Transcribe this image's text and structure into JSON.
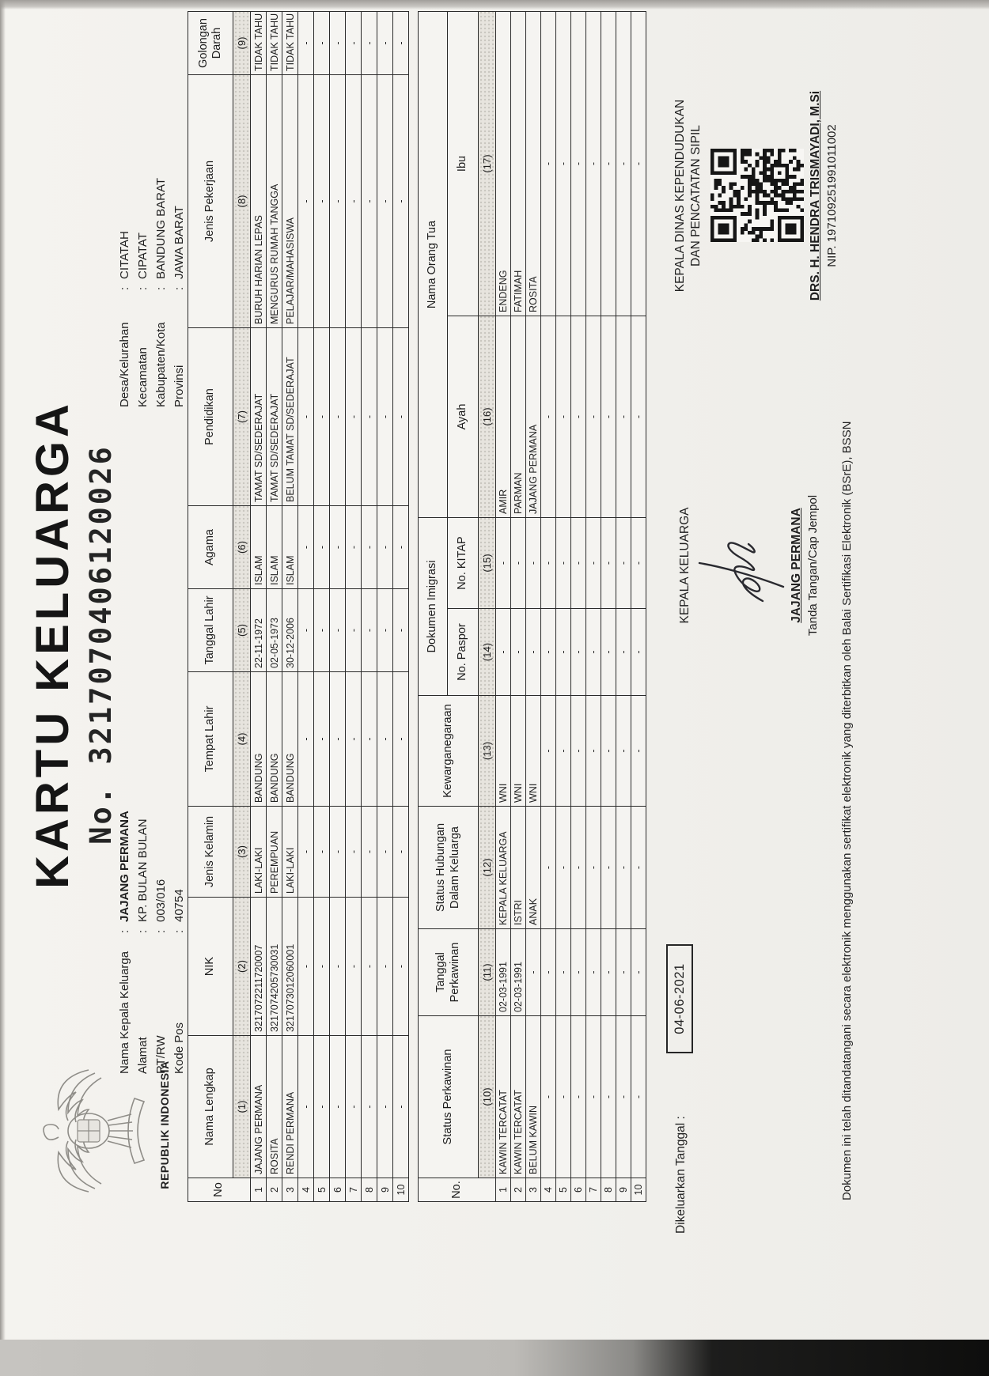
{
  "document": {
    "title": "KARTU KELUARGA",
    "number": "No. 3217070406120026",
    "republic": "REPUBLIK INDONESIA",
    "emblem_icon": "garuda-pancasila-emblem",
    "colors": {
      "paper": "#f2f1ee",
      "ink": "#1f1f1f",
      "table_border": "#2b2b2b",
      "header_shade": "#e7e4de",
      "scanner_edge": "#0e0e0d"
    }
  },
  "head_left": {
    "rows": [
      {
        "label": "Nama Kepala Keluarga",
        "value": "JAJANG PERMANA"
      },
      {
        "label": "Alamat",
        "value": "KP. BULAN BULAN"
      },
      {
        "label": "RT/RW",
        "value": "003/016"
      },
      {
        "label": "Kode Pos",
        "value": "40754"
      }
    ]
  },
  "head_right": {
    "rows": [
      {
        "label": "Desa/Kelurahan",
        "value": "CITATAH"
      },
      {
        "label": "Kecamatan",
        "value": "CIPATAT"
      },
      {
        "label": "Kabupaten/Kota",
        "value": "BANDUNG BARAT"
      },
      {
        "label": "Provinsi",
        "value": "JAWA BARAT"
      }
    ]
  },
  "table1": {
    "headers": [
      "No",
      "Nama Lengkap",
      "NIK",
      "Jenis Kelamin",
      "Tempat Lahir",
      "Tanggal Lahir",
      "Agama",
      "Pendidikan",
      "Jenis Pekerjaan",
      "Golongan Darah"
    ],
    "numbers": [
      "(1)",
      "(2)",
      "(3)",
      "(4)",
      "(5)",
      "(6)",
      "(7)",
      "(8)",
      "(9)"
    ],
    "rows": [
      [
        "1",
        "JAJANG PERMANA",
        "3217072211720007",
        "LAKI-LAKI",
        "BANDUNG",
        "22-11-1972",
        "ISLAM",
        "TAMAT SD/SEDERAJAT",
        "BURUH HARIAN LEPAS",
        "TIDAK TAHU"
      ],
      [
        "2",
        "ROSITA",
        "3217074205730031",
        "PEREMPUAN",
        "BANDUNG",
        "02-05-1973",
        "ISLAM",
        "TAMAT SD/SEDERAJAT",
        "MENGURUS RUMAH TANGGA",
        "TIDAK TAHU"
      ],
      [
        "3",
        "RENDI PERMANA",
        "3217073012060001",
        "LAKI-LAKI",
        "BANDUNG",
        "30-12-2006",
        "ISLAM",
        "BELUM TAMAT SD/SEDERAJAT",
        "PELAJAR/MAHASISWA",
        "TIDAK TAHU"
      ],
      [
        "4",
        "-",
        "-",
        "-",
        "-",
        "-",
        "-",
        "-",
        "-",
        "-"
      ],
      [
        "5",
        "-",
        "-",
        "-",
        "-",
        "-",
        "-",
        "-",
        "-",
        "-"
      ],
      [
        "6",
        "-",
        "-",
        "-",
        "-",
        "-",
        "-",
        "-",
        "-",
        "-"
      ],
      [
        "7",
        "-",
        "-",
        "-",
        "-",
        "-",
        "-",
        "-",
        "-",
        "-"
      ],
      [
        "8",
        "-",
        "-",
        "-",
        "-",
        "-",
        "-",
        "-",
        "-",
        "-"
      ],
      [
        "9",
        "-",
        "-",
        "-",
        "-",
        "-",
        "-",
        "-",
        "-",
        "-"
      ],
      [
        "10",
        "-",
        "-",
        "-",
        "-",
        "-",
        "-",
        "-",
        "-",
        "-"
      ]
    ]
  },
  "table2": {
    "headers": {
      "no": "No.",
      "status_perkawinan": "Status Perkawinan",
      "tanggal_perkawinan": "Tanggal Perkawinan",
      "status_hubungan": "Status Hubungan Dalam Keluarga",
      "kewarganegaraan": "Kewarganegaraan",
      "dokumen_imigrasi": "Dokumen Imigrasi",
      "no_paspor": "No. Paspor",
      "no_kitap": "No. KITAP",
      "nama_orang_tua": "Nama Orang Tua",
      "ayah": "Ayah",
      "ibu": "Ibu"
    },
    "numbers": [
      "(10)",
      "(11)",
      "(12)",
      "(13)",
      "(14)",
      "(15)",
      "(16)",
      "(17)"
    ],
    "rows": [
      [
        "1",
        "KAWIN TERCATAT",
        "02-03-1991",
        "KEPALA KELUARGA",
        "WNI",
        "-",
        "-",
        "AMIR",
        "ENDENG"
      ],
      [
        "2",
        "KAWIN TERCATAT",
        "02-03-1991",
        "ISTRI",
        "WNI",
        "-",
        "-",
        "PARMAN",
        "FATIMAH"
      ],
      [
        "3",
        "BELUM KAWIN",
        "-",
        "ANAK",
        "WNI",
        "-",
        "-",
        "JAJANG PERMANA",
        "ROSITA"
      ],
      [
        "4",
        "-",
        "-",
        "-",
        "-",
        "-",
        "-",
        "-",
        "-"
      ],
      [
        "5",
        "-",
        "-",
        "-",
        "-",
        "-",
        "-",
        "-",
        "-"
      ],
      [
        "6",
        "-",
        "-",
        "-",
        "-",
        "-",
        "-",
        "-",
        "-"
      ],
      [
        "7",
        "-",
        "-",
        "-",
        "-",
        "-",
        "-",
        "-",
        "-"
      ],
      [
        "8",
        "-",
        "-",
        "-",
        "-",
        "-",
        "-",
        "-",
        "-"
      ],
      [
        "9",
        "-",
        "-",
        "-",
        "-",
        "-",
        "-",
        "-",
        "-"
      ],
      [
        "10",
        "-",
        "-",
        "-",
        "-",
        "-",
        "-",
        "-",
        "-"
      ]
    ]
  },
  "footer": {
    "issued_label": "Dikeluarkan Tanggal :",
    "issued_date": "04-06-2021",
    "head_of_family": {
      "title": "KEPALA KELUARGA",
      "signature_icon": "handwritten-signature",
      "name": "JAJANG PERMANA",
      "caption": "Tanda Tangan/Cap Jempol"
    },
    "official": {
      "title_line1": "KEPALA DINAS KEPENDUDUKAN",
      "title_line2": "DAN PENCATATAN SIPIL",
      "qr_icon": "qr-code",
      "name": "DRS. H. HENDRA TRISMAYADI, M.Si",
      "nip": "NIP. 197109251991011002"
    },
    "disclaimer": "Dokumen ini telah ditandatangani secara elektronik menggunakan sertifikat elektronik yang diterbitkan oleh Balai Sertifikasi Elektronik (BSrE), BSSN"
  }
}
